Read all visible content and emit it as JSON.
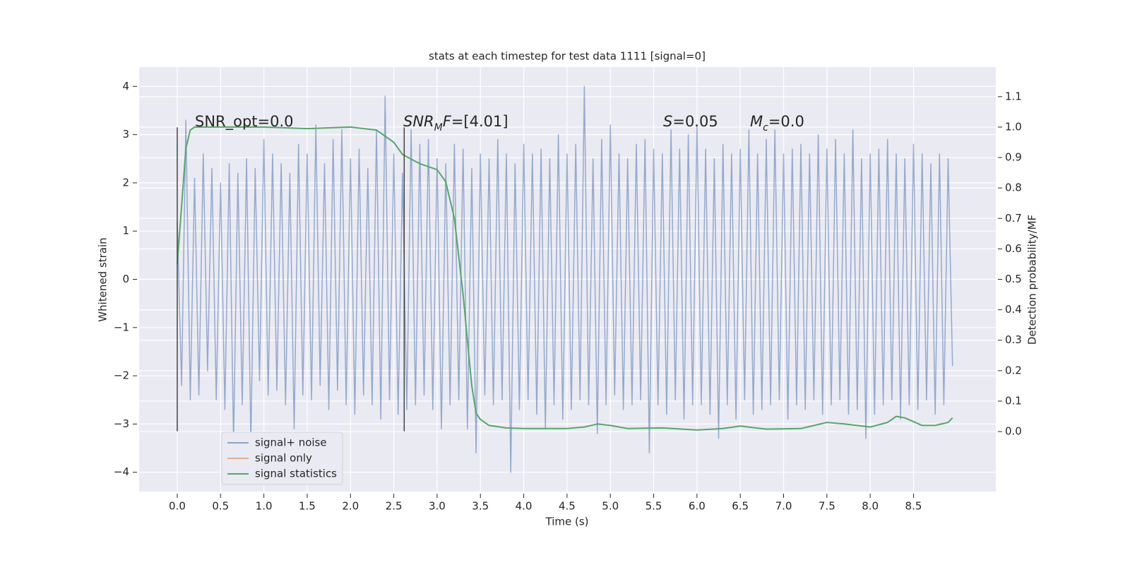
{
  "chart_data": {
    "type": "line",
    "title": "stats at each timestep for test data 1111 [signal=0]",
    "x_label": "Time (s)",
    "y_label": "Whitened strain",
    "y2_label": "Detection probability/MF",
    "xlim": [
      -0.44,
      9.45
    ],
    "ylim": [
      -4.4,
      4.4
    ],
    "y2lim": [
      -0.197,
      1.197
    ],
    "xticks": [
      {
        "value": 0,
        "label": "0.0"
      },
      0.5,
      {
        "value": 1,
        "label": "1.0"
      },
      1.5,
      {
        "value": 2,
        "label": "2.0"
      },
      2.5,
      {
        "value": 3,
        "label": "3.0"
      },
      3.5,
      {
        "value": 4,
        "label": "4.0"
      },
      4.5,
      {
        "value": 5,
        "label": "5.0"
      },
      5.5,
      {
        "value": 6,
        "label": "6.0"
      },
      6.5,
      {
        "value": 7,
        "label": "7.0"
      },
      7.5,
      {
        "value": 8,
        "label": "8.0"
      },
      8.5
    ],
    "yticks": [
      {
        "value": -4,
        "label": "−4"
      },
      {
        "value": -3,
        "label": "−3"
      },
      {
        "value": -2,
        "label": "−2"
      },
      {
        "value": -1,
        "label": "−1"
      },
      0,
      1,
      2,
      3,
      4
    ],
    "y2ticks": [
      {
        "value": 0,
        "label": "0.0"
      },
      0.1,
      0.2,
      0.3,
      0.4,
      0.5,
      0.6,
      0.7,
      0.8,
      0.9,
      {
        "value": 1,
        "label": "1.0"
      },
      1.1
    ],
    "grid": true,
    "legend": "lower left",
    "series": [
      {
        "name": "signal+ noise",
        "color": "#4c72b0",
        "x": [
          0,
          0.05,
          0.1,
          0.15,
          0.2,
          0.25,
          0.3,
          0.35,
          0.4,
          0.45,
          0.5,
          0.55,
          0.6,
          0.65,
          0.7,
          0.75,
          0.8,
          0.85,
          0.9,
          0.95,
          1,
          1.05,
          1.1,
          1.15,
          1.2,
          1.25,
          1.3,
          1.35,
          1.4,
          1.45,
          1.5,
          1.55,
          1.6,
          1.65,
          1.7,
          1.75,
          1.8,
          1.85,
          1.9,
          1.95,
          2,
          2.05,
          2.1,
          2.15,
          2.2,
          2.25,
          2.3,
          2.35,
          2.4,
          2.45,
          2.5,
          2.55,
          2.6,
          2.65,
          2.7,
          2.75,
          2.8,
          2.85,
          2.9,
          2.95,
          3,
          3.05,
          3.1,
          3.15,
          3.2,
          3.25,
          3.3,
          3.35,
          3.4,
          3.45,
          3.5,
          3.55,
          3.6,
          3.65,
          3.7,
          3.75,
          3.8,
          3.85,
          3.9,
          3.95,
          4,
          4.05,
          4.1,
          4.15,
          4.2,
          4.25,
          4.3,
          4.35,
          4.4,
          4.45,
          4.5,
          4.55,
          4.6,
          4.65,
          4.7,
          4.75,
          4.8,
          4.85,
          4.9,
          4.95,
          5,
          5.05,
          5.1,
          5.15,
          5.2,
          5.25,
          5.3,
          5.35,
          5.4,
          5.45,
          5.5,
          5.55,
          5.6,
          5.65,
          5.7,
          5.75,
          5.8,
          5.85,
          5.9,
          5.95,
          6,
          6.05,
          6.1,
          6.15,
          6.2,
          6.25,
          6.3,
          6.35,
          6.4,
          6.45,
          6.5,
          6.55,
          6.6,
          6.65,
          6.7,
          6.75,
          6.8,
          6.85,
          6.9,
          6.95,
          7,
          7.05,
          7.1,
          7.15,
          7.2,
          7.25,
          7.3,
          7.35,
          7.4,
          7.45,
          7.5,
          7.55,
          7.6,
          7.65,
          7.7,
          7.75,
          7.8,
          7.85,
          7.9,
          7.95,
          8,
          8.05,
          8.1,
          8.15,
          8.2,
          8.25,
          8.3,
          8.35,
          8.4,
          8.45,
          8.5,
          8.55,
          8.6,
          8.65,
          8.7,
          8.75,
          8.8,
          8.85,
          8.9,
          8.95
        ],
        "values": [
          1.2,
          -2.2,
          3.3,
          -2.5,
          2.1,
          -2.4,
          2.6,
          -1.9,
          2.3,
          -2.5,
          2.0,
          -2.7,
          2.4,
          -3.4,
          2.2,
          -2.6,
          2.5,
          -3.4,
          2.3,
          -2.1,
          2.9,
          -2.4,
          2.6,
          -2.3,
          2.4,
          -2.6,
          2.2,
          -3.1,
          2.8,
          -2.4,
          2.6,
          -2.5,
          3.2,
          -2.2,
          2.4,
          -2.7,
          2.9,
          -2.3,
          3.1,
          -2.6,
          2.5,
          -2.8,
          2.7,
          -2.4,
          2.3,
          -2.6,
          3.1,
          -2.9,
          3.8,
          -2.5,
          2.6,
          -2.8,
          2.2,
          -2.7,
          3.1,
          -2.6,
          2.8,
          -2.4,
          2.9,
          -2.7,
          2.5,
          -3.1,
          2.4,
          -2.6,
          2.8,
          -2.5,
          2.7,
          -3.1,
          2.3,
          -3.6,
          2.6,
          -2.4,
          2.5,
          -2.6,
          2.9,
          -2.5,
          2.6,
          -4.0,
          2.4,
          -2.7,
          2.8,
          -2.5,
          2.6,
          -2.8,
          2.7,
          -3.1,
          2.5,
          -2.6,
          3.0,
          -2.9,
          2.6,
          -2.7,
          2.8,
          -2.5,
          4.0,
          -2.6,
          2.5,
          -3.2,
          2.9,
          -2.6,
          3.2,
          -2.4,
          2.6,
          -2.7,
          2.5,
          -2.6,
          2.8,
          -2.5,
          2.9,
          -3.6,
          2.7,
          -2.6,
          2.6,
          -2.8,
          3.1,
          -2.5,
          2.7,
          -2.9,
          3.0,
          -2.6,
          3.2,
          -2.6,
          2.7,
          -2.8,
          2.5,
          -3.3,
          2.8,
          -2.6,
          2.6,
          -2.9,
          2.7,
          -2.5,
          3.1,
          -2.8,
          2.6,
          -2.7,
          2.9,
          -2.6,
          3.1,
          -2.5,
          2.6,
          -2.9,
          2.7,
          -2.6,
          2.8,
          -2.7,
          2.6,
          -2.5,
          3.0,
          -2.8,
          2.7,
          -2.6,
          2.9,
          -2.5,
          2.6,
          -2.8,
          3.1,
          -2.7,
          2.5,
          -3.3,
          2.6,
          -2.8,
          2.7,
          -2.6,
          2.9,
          -2.5,
          2.6,
          -2.9,
          2.5,
          -2.6,
          2.8,
          -2.7,
          2.6,
          -2.5,
          2.4,
          -2.8,
          2.6,
          -2.6,
          2.5,
          -1.8
        ]
      },
      {
        "name": "signal only",
        "color": "#dd8452",
        "x": [],
        "values": []
      },
      {
        "name": "signal statistics",
        "color": "#55a868",
        "axis": "y2",
        "x": [
          0,
          0.1,
          0.15,
          0.2,
          0.5,
          1.0,
          1.5,
          2.0,
          2.3,
          2.5,
          2.6,
          2.8,
          3.0,
          3.1,
          3.2,
          3.3,
          3.35,
          3.4,
          3.45,
          3.5,
          3.6,
          3.8,
          4.0,
          4.5,
          4.7,
          4.85,
          5.0,
          5.2,
          5.6,
          6.0,
          6.3,
          6.5,
          6.8,
          7.2,
          7.5,
          7.7,
          8.0,
          8.2,
          8.3,
          8.4,
          8.6,
          8.75,
          8.9,
          8.95
        ],
        "values": [
          0.55,
          0.93,
          0.99,
          1.0,
          1.0,
          1.0,
          0.995,
          1.0,
          0.99,
          0.95,
          0.91,
          0.88,
          0.86,
          0.82,
          0.7,
          0.45,
          0.3,
          0.15,
          0.06,
          0.04,
          0.02,
          0.012,
          0.01,
          0.01,
          0.015,
          0.025,
          0.02,
          0.01,
          0.012,
          0.005,
          0.01,
          0.018,
          0.008,
          0.01,
          0.03,
          0.025,
          0.015,
          0.03,
          0.05,
          0.045,
          0.02,
          0.02,
          0.03,
          0.045
        ]
      }
    ],
    "vlines": [
      {
        "x": 0,
        "ymin": -3.15,
        "ymax": 3.15,
        "color": "#444444"
      },
      {
        "x": 2.62,
        "ymin": -3.15,
        "ymax": 3.15,
        "color": "#444444"
      }
    ],
    "annotations": [
      [
        {
          "text": "SNR_opt=0.0",
          "style": "normal"
        }
      ],
      [
        {
          "text": "SNR",
          "style": "italic"
        },
        {
          "text": "M",
          "style": "sub"
        },
        {
          "text": "F",
          "style": "italic"
        },
        {
          "text": "=[4.01]",
          "style": "normal"
        }
      ],
      [
        {
          "text": "S",
          "style": "italic"
        },
        {
          "text": "=0.05",
          "style": "normal"
        }
      ],
      [
        {
          "text": "M",
          "style": "italic"
        },
        {
          "text": "c",
          "style": "sub"
        },
        {
          "text": "=0.0",
          "style": "normal"
        }
      ]
    ]
  }
}
